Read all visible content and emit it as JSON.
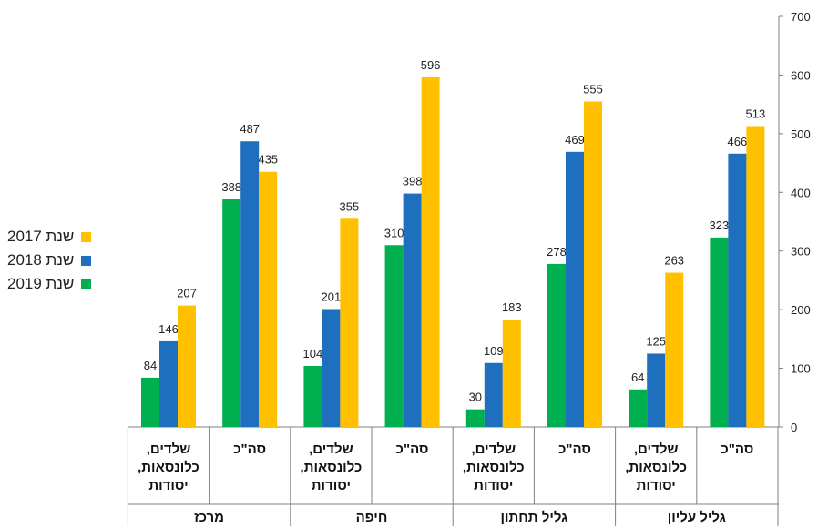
{
  "chart_data": {
    "type": "bar",
    "ylim": [
      0,
      700
    ],
    "yticks": [
      0,
      100,
      200,
      300,
      400,
      500,
      600,
      700
    ],
    "grid": false,
    "legend_position": "left",
    "categories": [
      {
        "group": "גליל עליון",
        "label": [
          "סה\"כ"
        ],
        "values": {
          "2019": 323,
          "2018": 466,
          "2017": 513
        }
      },
      {
        "group": "גליל עליון",
        "label": [
          "שלדים,",
          "כלונסאות,",
          "יסודות"
        ],
        "values": {
          "2019": 64,
          "2018": 125,
          "2017": 263
        }
      },
      {
        "group": "גליל תחתון",
        "label": [
          "סה\"כ"
        ],
        "values": {
          "2019": 278,
          "2018": 469,
          "2017": 555
        }
      },
      {
        "group": "גליל תחתון",
        "label": [
          "שלדים,",
          "כלונסאות,",
          "יסודות"
        ],
        "values": {
          "2019": 30,
          "2018": 109,
          "2017": 183
        }
      },
      {
        "group": "חיפה",
        "label": [
          "סה\"כ"
        ],
        "values": {
          "2019": 310,
          "2018": 398,
          "2017": 596
        }
      },
      {
        "group": "חיפה",
        "label": [
          "שלדים,",
          "כלונסאות,",
          "יסודות"
        ],
        "values": {
          "2019": 104,
          "2018": 201,
          "2017": 355
        }
      },
      {
        "group": "מרכז",
        "label": [
          "סה\"כ"
        ],
        "values": {
          "2019": 388,
          "2018": 487,
          "2017": 435
        }
      },
      {
        "group": "מרכז",
        "label": [
          "שלדים,",
          "כלונסאות,",
          "יסודות"
        ],
        "values": {
          "2019": 84,
          "2018": 146,
          "2017": 207
        }
      }
    ],
    "groups": [
      "גליל עליון",
      "גליל תחתון",
      "חיפה",
      "מרכז"
    ],
    "series": [
      {
        "key": "2019",
        "name": "שנת 2019",
        "color": "#00B050"
      },
      {
        "key": "2018",
        "name": "שנת 2018",
        "color": "#1F6FBF"
      },
      {
        "key": "2017",
        "name": "שנת 2017",
        "color": "#FFC000"
      }
    ],
    "legend_order": [
      "2017",
      "2018",
      "2019"
    ]
  }
}
